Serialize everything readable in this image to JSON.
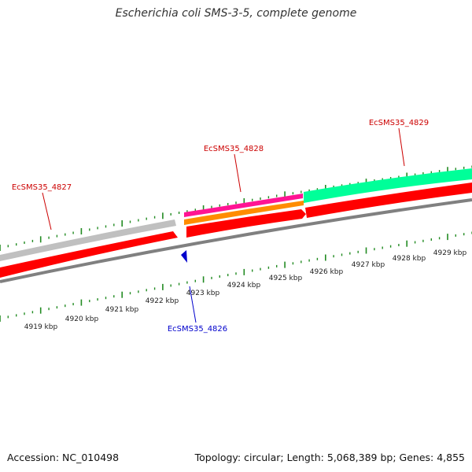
{
  "title": "Escherichia coli SMS-3-5, complete genome",
  "footer": {
    "accession": "Accession: NC_010498",
    "summary": "Topology: circular; Length: 5,068,389 bp; Genes: 4,855"
  },
  "colors": {
    "backbone": "#808080",
    "forward_gene": "#ff0000",
    "gray_feature": "#c0c0c0",
    "magenta_feature": "#ff1493",
    "orange_feature": "#ff8c00",
    "teal_feature": "#00ff99",
    "ticks": "#228b22",
    "forward_label": "#cc0000",
    "reverse_label": "#0000cc"
  },
  "scale_labels": [
    "4919 kbp",
    "4920 kbp",
    "4921 kbp",
    "4922 kbp",
    "4923 kbp",
    "4924 kbp",
    "4925 kbp",
    "4926 kbp",
    "4927 kbp",
    "4928 kbp",
    "4929 kbp"
  ],
  "genes": [
    {
      "label": "EcSMS35_4827",
      "strand": "forward"
    },
    {
      "label": "EcSMS35_4828",
      "strand": "forward"
    },
    {
      "label": "EcSMS35_4829",
      "strand": "forward"
    },
    {
      "label": "EcSMS35_4826",
      "strand": "reverse"
    }
  ]
}
